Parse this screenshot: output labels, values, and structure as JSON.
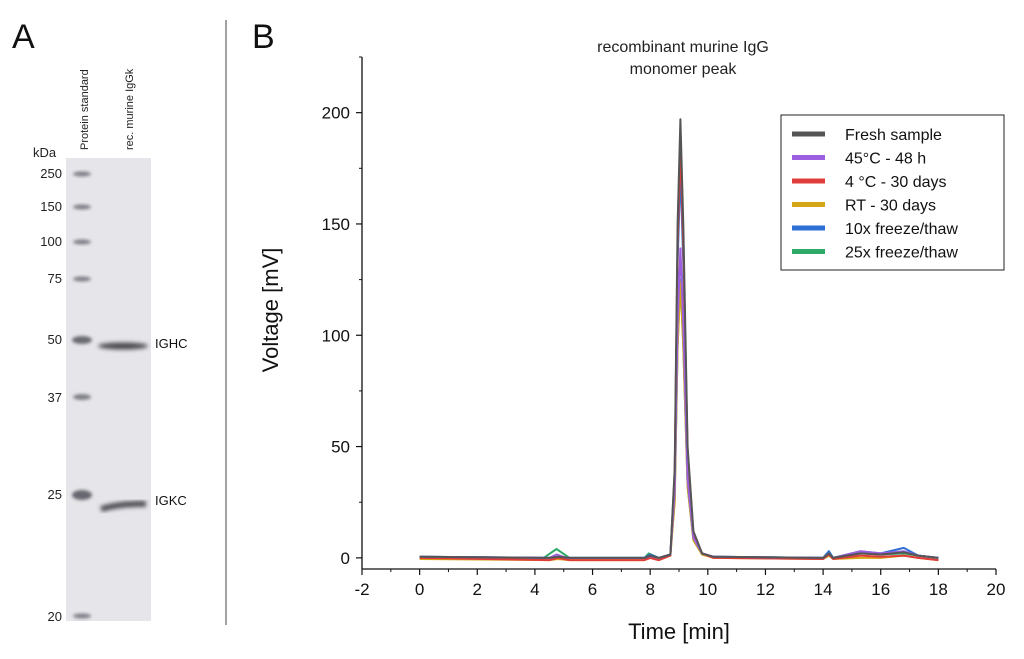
{
  "panel_a": {
    "letter": "A",
    "lanes": [
      "Protein standard",
      "rec. murine IgGk"
    ],
    "unit": "kDa",
    "markers": [
      "250",
      "150",
      "100",
      "75",
      "50",
      "37",
      "25",
      "20"
    ],
    "bands": [
      "IGHC",
      "IGKC"
    ]
  },
  "panel_b": {
    "letter": "B"
  },
  "chart_data": {
    "type": "line",
    "title": [
      "recombinant murine IgG",
      "monomer peak"
    ],
    "xlabel": "Time [min]",
    "ylabel": "Voltage [mV]",
    "xlim": [
      -2,
      20
    ],
    "ylim": [
      -5,
      225
    ],
    "xticks": [
      -2,
      0,
      2,
      4,
      6,
      8,
      10,
      12,
      14,
      16,
      18,
      20
    ],
    "yticks": [
      0,
      50,
      100,
      150,
      200
    ],
    "legend_position": "top-right",
    "series": [
      {
        "name": "Fresh sample",
        "color": "#555555",
        "peak": 197,
        "points": [
          [
            0,
            0.5
          ],
          [
            4.5,
            0
          ],
          [
            4.8,
            0.5
          ],
          [
            5.2,
            0
          ],
          [
            7.8,
            0
          ],
          [
            8.0,
            1
          ],
          [
            8.3,
            0
          ],
          [
            8.7,
            1.5
          ],
          [
            8.85,
            40
          ],
          [
            8.95,
            150
          ],
          [
            9.05,
            197
          ],
          [
            9.15,
            150
          ],
          [
            9.3,
            50
          ],
          [
            9.5,
            12
          ],
          [
            9.8,
            2
          ],
          [
            10.2,
            0.5
          ],
          [
            14.0,
            0
          ],
          [
            14.2,
            2
          ],
          [
            14.35,
            0
          ],
          [
            15.3,
            2
          ],
          [
            16.0,
            1.5
          ],
          [
            16.8,
            2.5
          ],
          [
            17.3,
            1
          ],
          [
            18.0,
            0
          ]
        ]
      },
      {
        "name": "45°C - 48 h",
        "color": "#9b5fe0",
        "peak": 139,
        "points": [
          [
            0,
            0.5
          ],
          [
            4.5,
            0
          ],
          [
            4.75,
            1.5
          ],
          [
            5.1,
            0
          ],
          [
            7.8,
            0
          ],
          [
            8.0,
            0.8
          ],
          [
            8.3,
            0
          ],
          [
            8.7,
            1.5
          ],
          [
            8.85,
            30
          ],
          [
            8.95,
            105
          ],
          [
            9.05,
            139
          ],
          [
            9.15,
            105
          ],
          [
            9.3,
            35
          ],
          [
            9.5,
            9
          ],
          [
            9.8,
            2
          ],
          [
            10.2,
            0.5
          ],
          [
            14.0,
            0
          ],
          [
            14.2,
            2
          ],
          [
            14.35,
            0
          ],
          [
            15.3,
            3
          ],
          [
            16.0,
            2
          ],
          [
            16.8,
            3
          ],
          [
            17.3,
            1
          ],
          [
            18.0,
            0
          ]
        ]
      },
      {
        "name": "4 °C - 30 days",
        "color": "#e03c3c",
        "peak": 186,
        "points": [
          [
            0,
            0
          ],
          [
            4.5,
            -1
          ],
          [
            4.8,
            0
          ],
          [
            5.2,
            -1
          ],
          [
            7.8,
            -1
          ],
          [
            8.0,
            0
          ],
          [
            8.3,
            -1
          ],
          [
            8.7,
            1
          ],
          [
            8.85,
            38
          ],
          [
            8.95,
            140
          ],
          [
            9.05,
            186
          ],
          [
            9.15,
            140
          ],
          [
            9.3,
            48
          ],
          [
            9.5,
            11
          ],
          [
            9.8,
            2
          ],
          [
            10.2,
            0
          ],
          [
            14.0,
            -0.5
          ],
          [
            14.2,
            1.5
          ],
          [
            14.35,
            -0.5
          ],
          [
            15.3,
            1
          ],
          [
            16.0,
            0.5
          ],
          [
            16.8,
            1
          ],
          [
            17.3,
            0
          ],
          [
            18.0,
            -1
          ]
        ]
      },
      {
        "name": "RT - 30 days",
        "color": "#d4a514",
        "peak": 124,
        "points": [
          [
            0,
            -0.5
          ],
          [
            4.5,
            -1
          ],
          [
            4.8,
            -0.5
          ],
          [
            5.2,
            -1
          ],
          [
            7.8,
            -1
          ],
          [
            8.0,
            0
          ],
          [
            8.3,
            -1
          ],
          [
            8.7,
            1
          ],
          [
            8.85,
            25
          ],
          [
            8.95,
            95
          ],
          [
            9.05,
            124
          ],
          [
            9.15,
            95
          ],
          [
            9.3,
            32
          ],
          [
            9.5,
            8
          ],
          [
            9.8,
            1.5
          ],
          [
            10.2,
            0
          ],
          [
            14.0,
            -0.5
          ],
          [
            14.2,
            1
          ],
          [
            14.35,
            -0.5
          ],
          [
            15.3,
            0
          ],
          [
            16.0,
            0
          ],
          [
            16.8,
            1
          ],
          [
            17.3,
            0
          ],
          [
            18.0,
            -1
          ]
        ]
      },
      {
        "name": "10x freeze/thaw",
        "color": "#2e6fd6",
        "peak": 175,
        "points": [
          [
            0,
            0.5
          ],
          [
            4.5,
            0
          ],
          [
            4.8,
            0.5
          ],
          [
            5.2,
            0
          ],
          [
            7.8,
            0
          ],
          [
            8.0,
            1.5
          ],
          [
            8.3,
            0
          ],
          [
            8.7,
            1.5
          ],
          [
            8.85,
            36
          ],
          [
            8.95,
            132
          ],
          [
            9.05,
            175
          ],
          [
            9.15,
            132
          ],
          [
            9.3,
            45
          ],
          [
            9.5,
            10
          ],
          [
            9.8,
            2
          ],
          [
            10.2,
            0.5
          ],
          [
            14.0,
            0
          ],
          [
            14.2,
            3
          ],
          [
            14.35,
            0
          ],
          [
            15.3,
            3
          ],
          [
            16.0,
            2
          ],
          [
            16.8,
            4.5
          ],
          [
            17.3,
            1
          ],
          [
            18.0,
            0
          ]
        ]
      },
      {
        "name": "25x freeze/thaw",
        "color": "#2eaa66",
        "peak": 125,
        "points": [
          [
            0,
            0.5
          ],
          [
            4.3,
            0
          ],
          [
            4.75,
            4
          ],
          [
            5.2,
            0
          ],
          [
            7.8,
            0
          ],
          [
            7.95,
            2
          ],
          [
            8.3,
            0
          ],
          [
            8.7,
            1.5
          ],
          [
            8.85,
            26
          ],
          [
            8.95,
            95
          ],
          [
            9.05,
            125
          ],
          [
            9.15,
            95
          ],
          [
            9.3,
            32
          ],
          [
            9.5,
            8
          ],
          [
            9.8,
            1.5
          ],
          [
            10.2,
            0.5
          ],
          [
            14.0,
            0
          ],
          [
            14.2,
            2
          ],
          [
            14.35,
            0
          ],
          [
            15.3,
            2
          ],
          [
            16.0,
            1.5
          ],
          [
            16.8,
            2
          ],
          [
            17.3,
            1
          ],
          [
            18.0,
            0
          ]
        ]
      }
    ]
  }
}
